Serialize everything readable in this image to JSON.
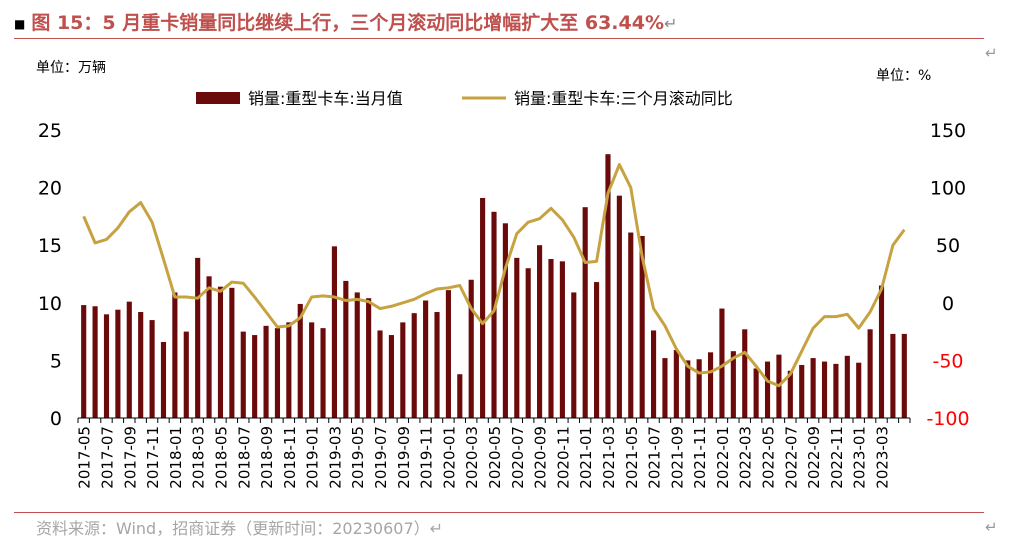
{
  "figure": {
    "bullet": "■",
    "title": "图 15：5 月重卡销量同比继续上行，三个月滚动同比增幅扩大至 63.44%",
    "title_mark": "↵",
    "para_mark": "↵"
  },
  "source": {
    "text": "资料来源：Wind，招商证券（更新时间：20230607）",
    "mark": "↵"
  },
  "chart_data": {
    "type": "bar+line",
    "left_unit_label": "单位：万辆",
    "right_unit_label": "单位：%",
    "legend": {
      "placement": "top-center",
      "bar_label": "销量:重型卡车:当月值",
      "line_label": "销量:重型卡车:三个月滚动同比"
    },
    "left_axis": {
      "min": 0,
      "max": 25,
      "ticks": [
        "0",
        "5",
        "10",
        "15",
        "20",
        "25"
      ]
    },
    "right_axis": {
      "min": -100,
      "max": 150,
      "ticks": [
        "-100",
        "-50",
        "0",
        "50",
        "100",
        "150"
      ],
      "negative_color": "#ff0000"
    },
    "colors": {
      "bar": "#6b0a0a",
      "line": "#c7a240"
    },
    "x_tick_labels": [
      "2017-05",
      "2017-07",
      "2017-09",
      "2017-11",
      "2018-01",
      "2018-03",
      "2018-05",
      "2018-07",
      "2018-09",
      "2018-11",
      "2019-01",
      "2019-03",
      "2019-05",
      "2019-07",
      "2019-09",
      "2019-11",
      "2020-01",
      "2020-03",
      "2020-05",
      "2020-07",
      "2020-09",
      "2020-11",
      "2021-01",
      "2021-03",
      "2021-05",
      "2021-07",
      "2021-09",
      "2021-11",
      "2022-01",
      "2022-03",
      "2022-05",
      "2022-07",
      "2022-09",
      "2022-11",
      "2023-01",
      "2023-03"
    ],
    "months": [
      "2017-05",
      "2017-06",
      "2017-07",
      "2017-08",
      "2017-09",
      "2017-10",
      "2017-11",
      "2017-12",
      "2018-01",
      "2018-02",
      "2018-03",
      "2018-04",
      "2018-05",
      "2018-06",
      "2018-07",
      "2018-08",
      "2018-09",
      "2018-10",
      "2018-11",
      "2018-12",
      "2019-01",
      "2019-02",
      "2019-03",
      "2019-04",
      "2019-05",
      "2019-06",
      "2019-07",
      "2019-08",
      "2019-09",
      "2019-10",
      "2019-11",
      "2019-12",
      "2020-01",
      "2020-02",
      "2020-03",
      "2020-04",
      "2020-05",
      "2020-06",
      "2020-07",
      "2020-08",
      "2020-09",
      "2020-10",
      "2020-11",
      "2020-12",
      "2021-01",
      "2021-02",
      "2021-03",
      "2021-04",
      "2021-05",
      "2021-06",
      "2021-07",
      "2021-08",
      "2021-09",
      "2021-10",
      "2021-11",
      "2021-12",
      "2022-01",
      "2022-02",
      "2022-03",
      "2022-04",
      "2022-05",
      "2022-06",
      "2022-07",
      "2022-08",
      "2022-09",
      "2022-10",
      "2022-11",
      "2022-12",
      "2023-01",
      "2023-02",
      "2023-03",
      "2023-04",
      "2023-05"
    ],
    "sales_monthly": [
      9.8,
      9.7,
      9.0,
      9.4,
      10.1,
      9.2,
      8.5,
      6.6,
      10.9,
      7.5,
      13.9,
      12.3,
      11.4,
      11.3,
      7.5,
      7.2,
      8.0,
      7.8,
      8.3,
      9.9,
      8.3,
      7.8,
      14.9,
      11.9,
      10.9,
      10.4,
      7.6,
      7.2,
      8.3,
      9.1,
      10.2,
      9.2,
      11.1,
      3.8,
      12.0,
      19.1,
      17.9,
      16.9,
      13.9,
      13.0,
      15.0,
      13.8,
      13.6,
      10.9,
      18.3,
      11.8,
      22.9,
      19.3,
      16.1,
      15.8,
      7.6,
      5.2,
      5.9,
      5.0,
      5.1,
      5.7,
      9.5,
      5.8,
      7.7,
      4.3,
      4.9,
      5.5,
      4.1,
      4.6,
      5.2,
      4.9,
      4.7,
      5.4,
      4.8,
      7.7,
      11.5,
      7.3,
      7.3
    ],
    "yoy_3m_rolling": [
      75,
      52,
      55,
      65,
      79,
      87,
      70,
      38,
      5,
      5,
      4,
      13,
      10,
      18,
      17,
      5,
      -8,
      -21,
      -20,
      -13,
      5,
      6,
      5,
      2,
      3,
      1,
      -5,
      -3,
      0,
      3,
      8,
      12,
      13,
      15,
      -5,
      -18,
      -7,
      30,
      60,
      70,
      73,
      82,
      72,
      57,
      35,
      36,
      95,
      120,
      100,
      40,
      -5,
      -20,
      -40,
      -55,
      -61,
      -60,
      -55,
      -48,
      -43,
      -55,
      -68,
      -72,
      -62,
      -42,
      -22,
      -12,
      -12,
      -10,
      -22,
      -8,
      12,
      50,
      63.44
    ]
  }
}
